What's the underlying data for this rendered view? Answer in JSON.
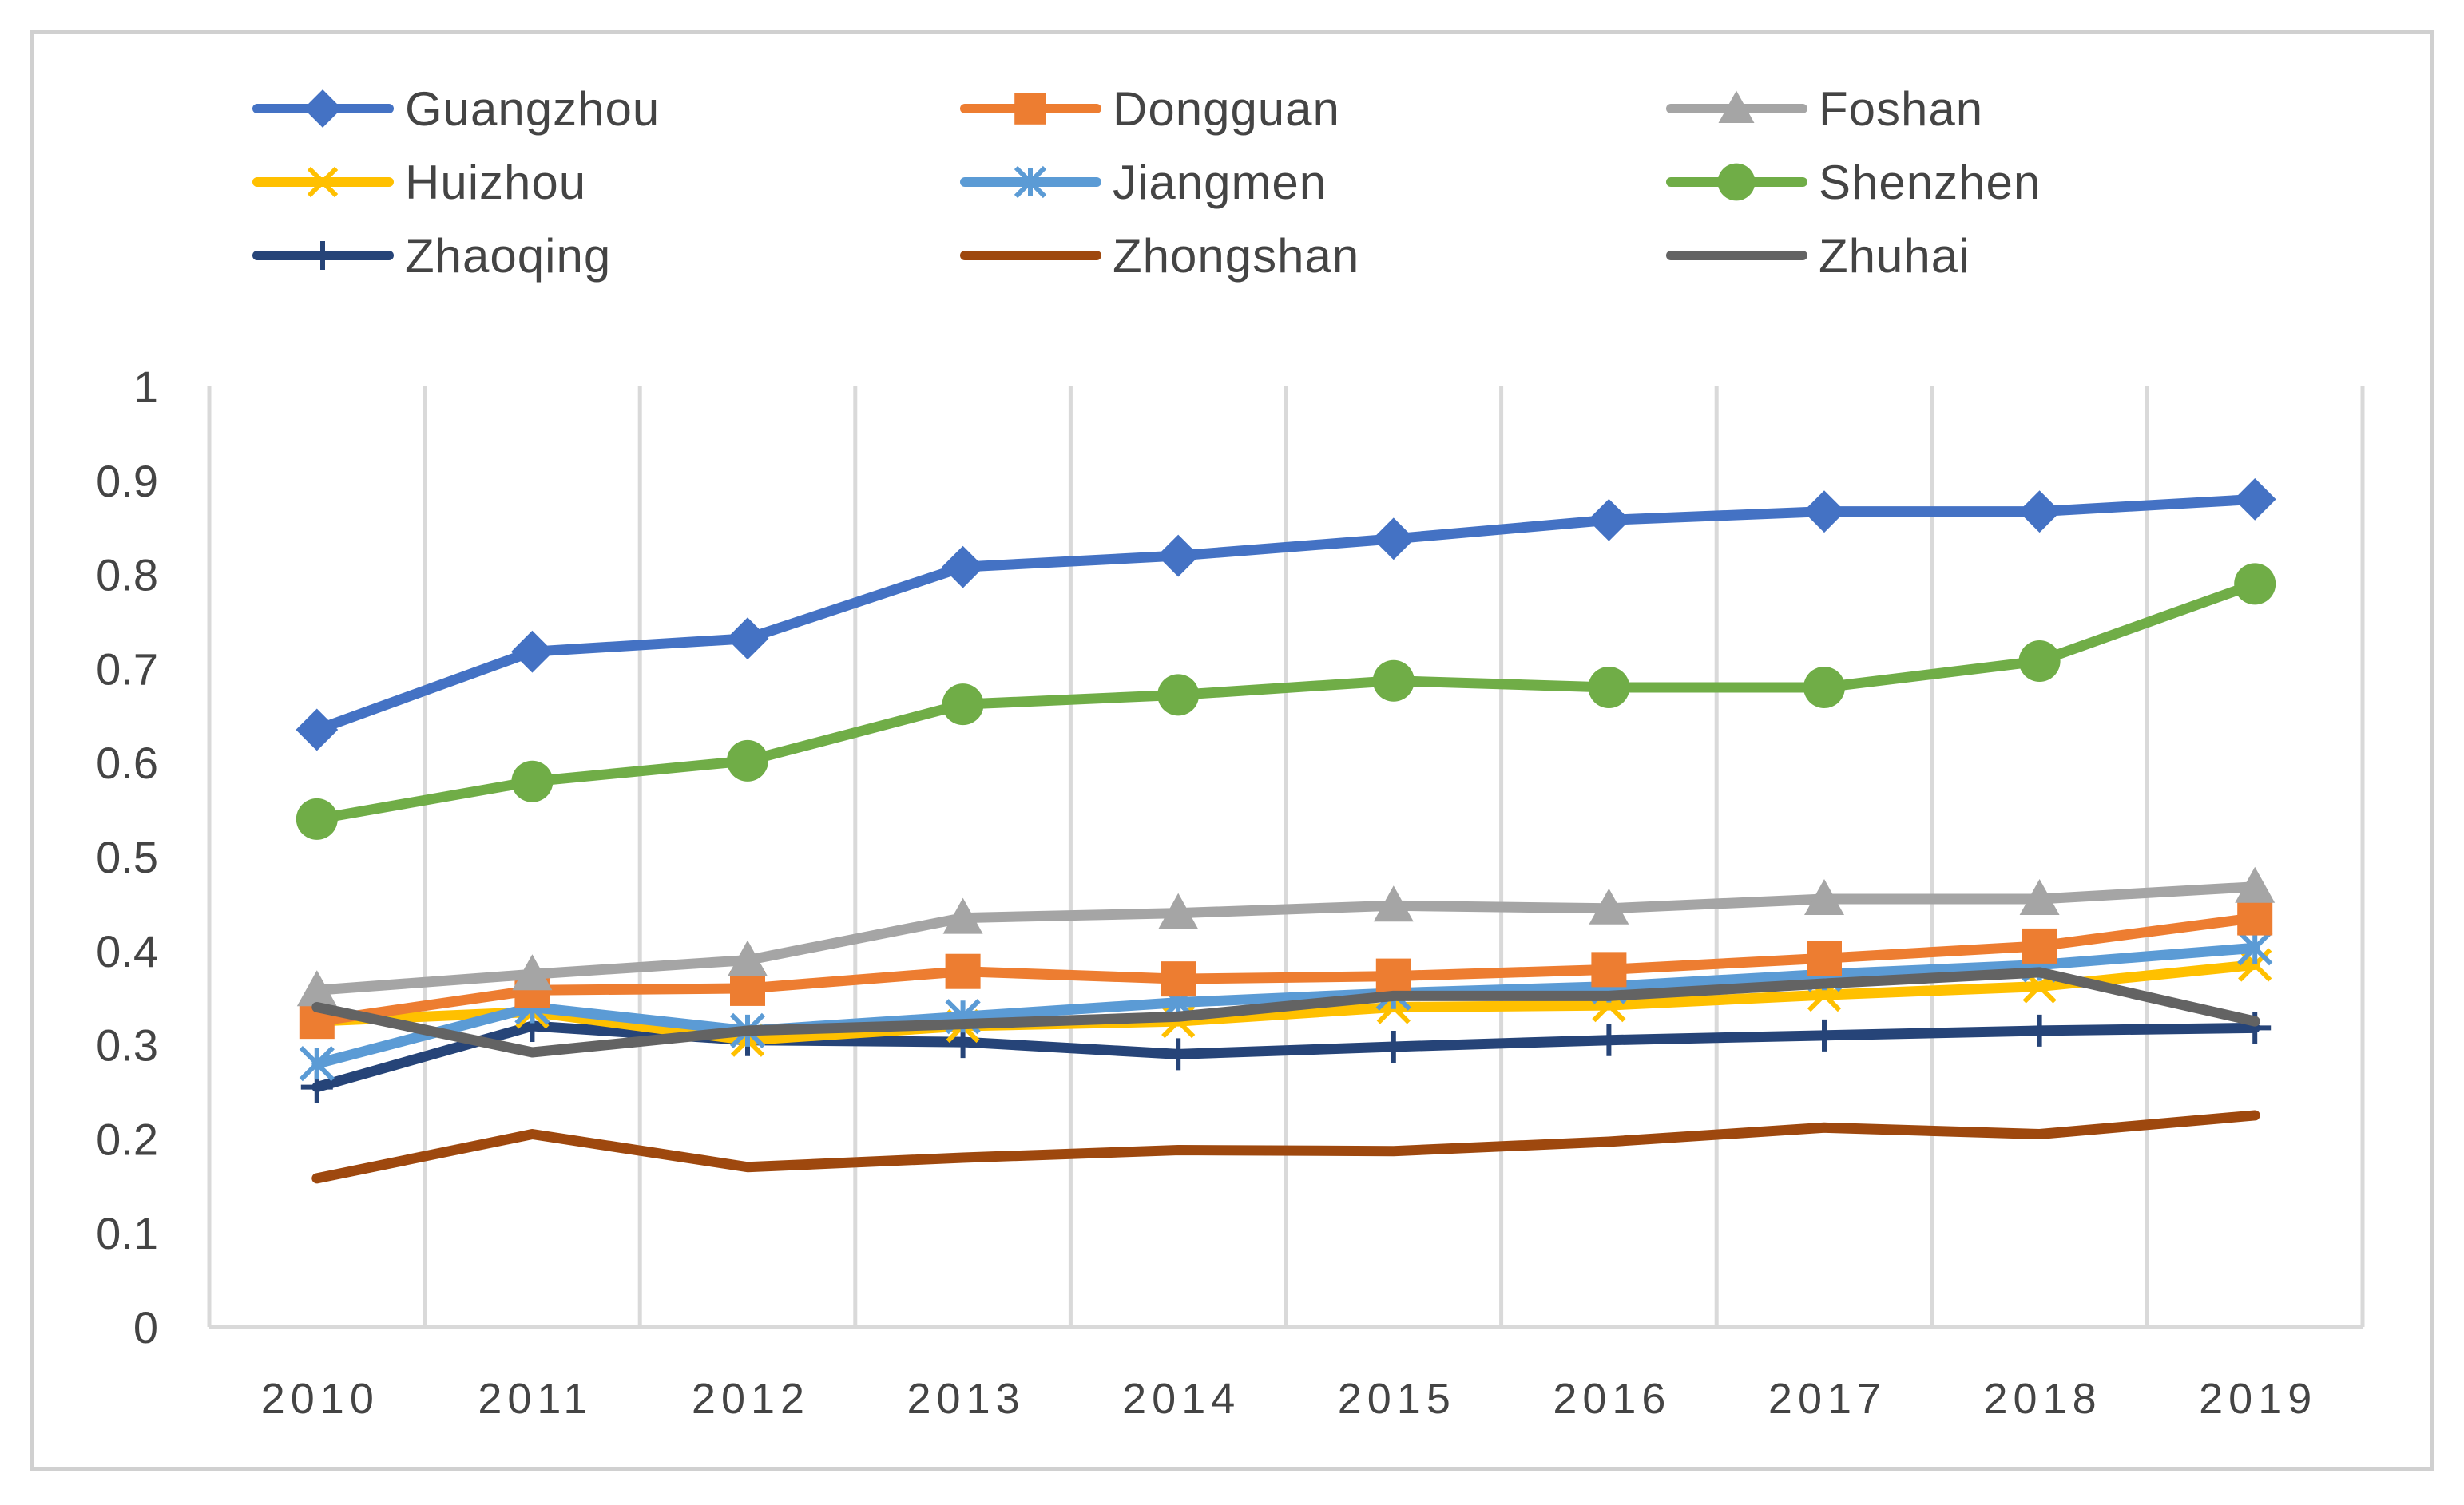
{
  "chart_data": {
    "type": "line",
    "categories": [
      "2010",
      "2011",
      "2012",
      "2013",
      "2014",
      "2015",
      "2016",
      "2017",
      "2018",
      "2019"
    ],
    "ylim": [
      0,
      1
    ],
    "yticks": [
      "0",
      "0.1",
      "0.2",
      "0.3",
      "0.4",
      "0.5",
      "0.6",
      "0.7",
      "0.8",
      "0.9",
      "1"
    ],
    "grid": "vertical",
    "legend_position": "top",
    "series": [
      {
        "name": "Guangzhou",
        "color": "#4472C4",
        "marker": "diamond",
        "values": [
          0.635,
          0.718,
          0.732,
          0.808,
          0.82,
          0.838,
          0.858,
          0.867,
          0.867,
          0.88
        ]
      },
      {
        "name": "Dongguan",
        "color": "#ED7D31",
        "marker": "square",
        "values": [
          0.325,
          0.358,
          0.36,
          0.378,
          0.37,
          0.373,
          0.38,
          0.392,
          0.405,
          0.435
        ]
      },
      {
        "name": "Foshan",
        "color": "#A5A5A5",
        "marker": "triangle",
        "values": [
          0.358,
          0.375,
          0.39,
          0.435,
          0.44,
          0.448,
          0.445,
          0.455,
          0.455,
          0.468
        ]
      },
      {
        "name": "Huizhou",
        "color": "#FFC000",
        "marker": "x",
        "values": [
          0.325,
          0.335,
          0.305,
          0.32,
          0.325,
          0.34,
          0.342,
          0.353,
          0.362,
          0.385
        ]
      },
      {
        "name": "Jiangmen",
        "color": "#5B9BD5",
        "marker": "asterisk",
        "values": [
          0.28,
          0.34,
          0.315,
          0.33,
          0.345,
          0.355,
          0.362,
          0.375,
          0.385,
          0.403
        ]
      },
      {
        "name": "Shenzhen",
        "color": "#70AD47",
        "marker": "circle",
        "values": [
          0.54,
          0.58,
          0.602,
          0.662,
          0.672,
          0.687,
          0.68,
          0.68,
          0.708,
          0.79
        ]
      },
      {
        "name": "Zhaoqing",
        "color": "#264478",
        "marker": "plus",
        "values": [
          0.255,
          0.32,
          0.305,
          0.303,
          0.29,
          0.298,
          0.305,
          0.31,
          0.315,
          0.318
        ]
      },
      {
        "name": "Zhongshan",
        "color": "#9E480E",
        "marker": "none",
        "values": [
          0.158,
          0.205,
          0.17,
          0.18,
          0.188,
          0.187,
          0.197,
          0.212,
          0.205,
          0.225
        ]
      },
      {
        "name": "Zhuhai",
        "color": "#636363",
        "marker": "none",
        "values": [
          0.34,
          0.292,
          0.315,
          0.322,
          0.33,
          0.352,
          0.352,
          0.365,
          0.377,
          0.325
        ]
      }
    ]
  }
}
